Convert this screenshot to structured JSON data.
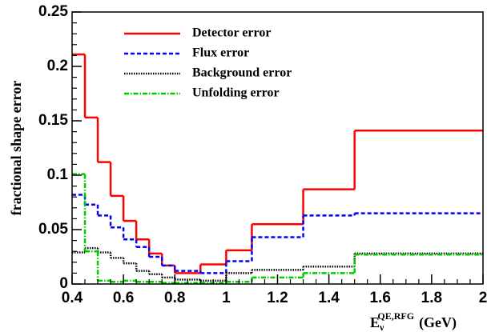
{
  "chart_data": {
    "type": "histogram",
    "y_label": "fractional shape error",
    "x_label": {
      "base": "E",
      "sub": "ν",
      "sup": "QE,RFG",
      "unit": "(GeV)"
    },
    "bins": [
      0.4,
      0.45,
      0.5,
      0.55,
      0.6,
      0.65,
      0.7,
      0.75,
      0.8,
      0.9,
      1.0,
      1.1,
      1.3,
      1.5,
      2.0
    ],
    "series": [
      {
        "name": "Detector error",
        "color": "#ff0000",
        "style": "solid",
        "values": [
          0.211,
          0.153,
          0.112,
          0.081,
          0.058,
          0.041,
          0.028,
          0.017,
          0.01,
          0.018,
          0.031,
          0.055,
          0.087,
          0.141
        ]
      },
      {
        "name": "Flux error",
        "color": "#0000ff",
        "style": "dashed",
        "values": [
          0.082,
          0.073,
          0.063,
          0.052,
          0.041,
          0.034,
          0.025,
          0.017,
          0.012,
          0.01,
          0.021,
          0.043,
          0.063,
          0.065
        ]
      },
      {
        "name": "Background error",
        "color": "#000000",
        "style": "dotted",
        "values": [
          0.029,
          0.033,
          0.029,
          0.024,
          0.019,
          0.012,
          0.009,
          0.006,
          0.004,
          0.003,
          0.01,
          0.013,
          0.016,
          0.028
        ]
      },
      {
        "name": "Unfolding error",
        "color": "#00cc00",
        "style": "dashdot",
        "values": [
          0.101,
          0.03,
          0.003,
          0.002,
          0.003,
          0.002,
          0.002,
          0.001,
          0.001,
          0.001,
          0.002,
          0.006,
          0.01,
          0.027
        ]
      }
    ],
    "xlim": [
      0.4,
      2
    ],
    "ylim": [
      0,
      0.25
    ],
    "xticks": [
      0.4,
      0.6,
      0.8,
      1,
      1.2,
      1.4,
      1.6,
      1.8,
      2
    ],
    "yticks": [
      0,
      0.05,
      0.1,
      0.15,
      0.2,
      0.25
    ],
    "legend": "top"
  }
}
